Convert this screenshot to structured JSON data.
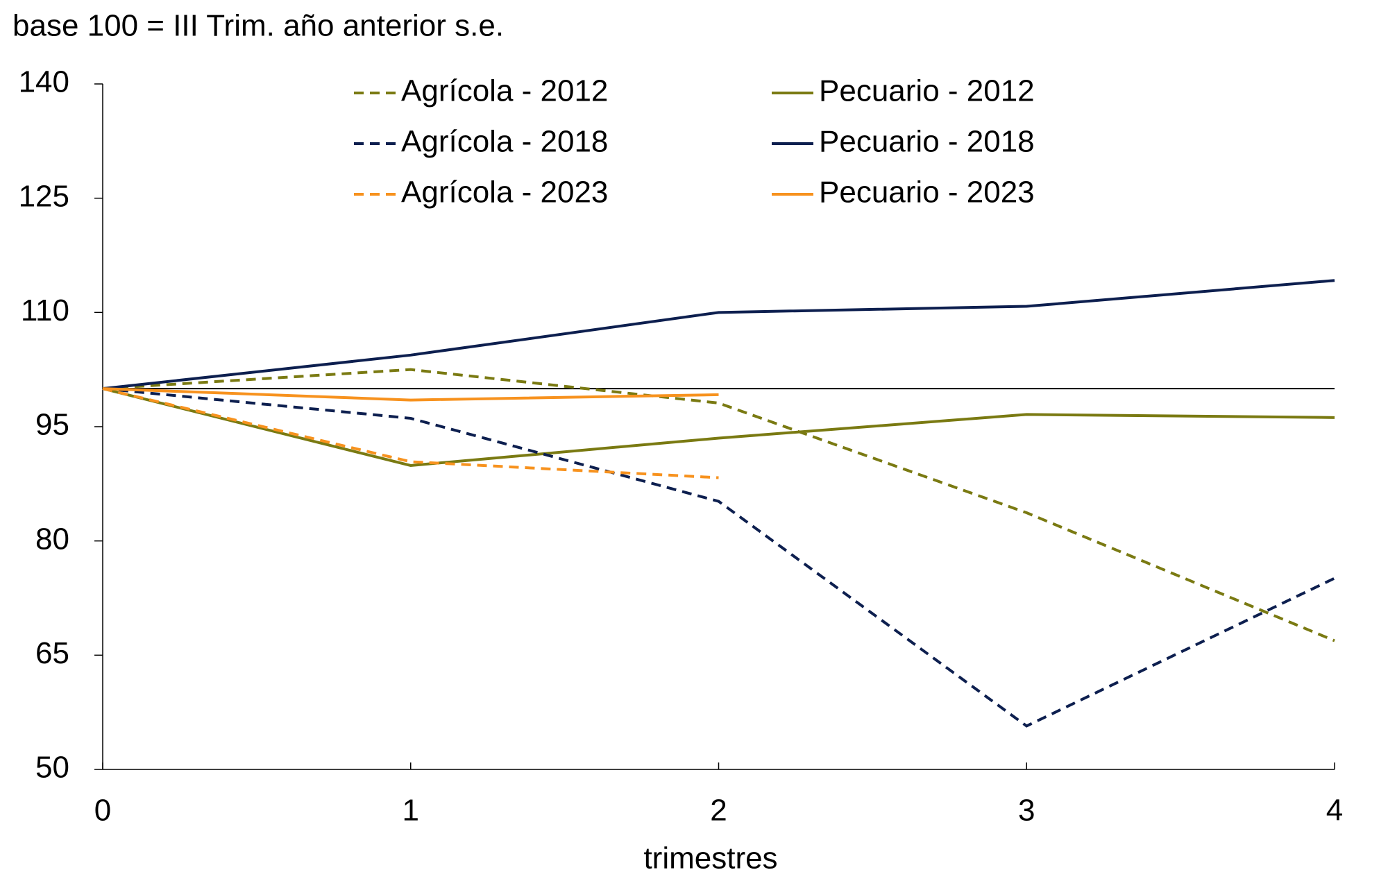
{
  "chart_data": {
    "type": "line",
    "title": "base 100 = III Trim. año anterior s.e.",
    "x_label": "trimestres",
    "x": [
      0,
      1,
      2,
      3,
      4
    ],
    "xlim": [
      0,
      4
    ],
    "xticks": [
      0,
      1,
      2,
      3,
      4
    ],
    "ylim": [
      50,
      140
    ],
    "yticks": [
      50,
      65,
      80,
      95,
      110,
      125,
      140
    ],
    "reference_line": 100,
    "legend": "top",
    "series": [
      {
        "name": "Agrícola - 2012",
        "color": "#7a7a12",
        "dashed": true,
        "values": [
          100,
          102.5,
          98.1,
          83.7,
          66.9
        ]
      },
      {
        "name": "Pecuario - 2012",
        "color": "#7a7a12",
        "dashed": false,
        "values": [
          100,
          89.9,
          93.5,
          96.6,
          96.2
        ]
      },
      {
        "name": "Agrícola - 2018",
        "color": "#0d1f4f",
        "dashed": true,
        "values": [
          100,
          96.1,
          85.2,
          55.7,
          75.1
        ]
      },
      {
        "name": "Pecuario - 2018",
        "color": "#0d1f4f",
        "dashed": false,
        "values": [
          100,
          104.4,
          110,
          110.8,
          114.2
        ]
      },
      {
        "name": "Agrícola - 2023",
        "color": "#f7921e",
        "dashed": true,
        "values": [
          100,
          90.4,
          88.3,
          null,
          null
        ]
      },
      {
        "name": "Pecuario - 2023",
        "color": "#f7921e",
        "dashed": false,
        "values": [
          100,
          98.5,
          99.2,
          null,
          null
        ]
      }
    ]
  }
}
